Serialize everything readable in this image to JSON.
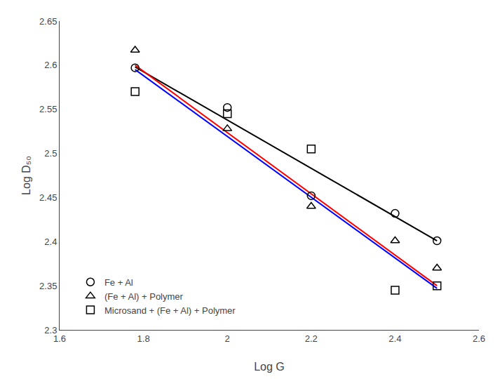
{
  "chart_data": {
    "type": "scatter",
    "xlabel": "Log G",
    "ylabel": "Log D₅₀",
    "xlim": [
      1.6,
      2.6
    ],
    "ylim": [
      2.3,
      2.65
    ],
    "xticks": [
      1.6,
      1.8,
      2.0,
      2.2,
      2.4,
      2.6
    ],
    "yticks": [
      2.3,
      2.35,
      2.4,
      2.45,
      2.5,
      2.55,
      2.6,
      2.65
    ],
    "grid": false,
    "legend": "lower left",
    "series": [
      {
        "type": "line",
        "color": "black",
        "x": [
          1.78,
          2.5
        ],
        "values": [
          2.598,
          2.401
        ]
      },
      {
        "type": "line",
        "color": "red",
        "x": [
          1.78,
          2.5
        ],
        "values": [
          2.6,
          2.35
        ]
      },
      {
        "type": "line",
        "color": "blue",
        "x": [
          1.78,
          2.5
        ],
        "values": [
          2.595,
          2.347
        ]
      },
      {
        "name": "Fe + Al",
        "type": "scatter",
        "marker": "circle",
        "color": "black",
        "x": [
          1.78,
          2.0,
          2.2,
          2.4,
          2.5
        ],
        "values": [
          2.597,
          2.552,
          2.452,
          2.432,
          2.401
        ]
      },
      {
        "name": "(Fe + Al) + Polymer",
        "type": "scatter",
        "marker": "triangle",
        "color": "black",
        "x": [
          1.78,
          2.0,
          2.2,
          2.4,
          2.5
        ],
        "values": [
          2.617,
          2.528,
          2.44,
          2.401,
          2.37
        ]
      },
      {
        "name": "Microsand + (Fe + Al) + Polymer",
        "type": "scatter",
        "marker": "square",
        "color": "black",
        "x": [
          1.78,
          2.0,
          2.2,
          2.4,
          2.5
        ],
        "values": [
          2.57,
          2.545,
          2.505,
          2.345,
          2.35
        ]
      }
    ]
  }
}
